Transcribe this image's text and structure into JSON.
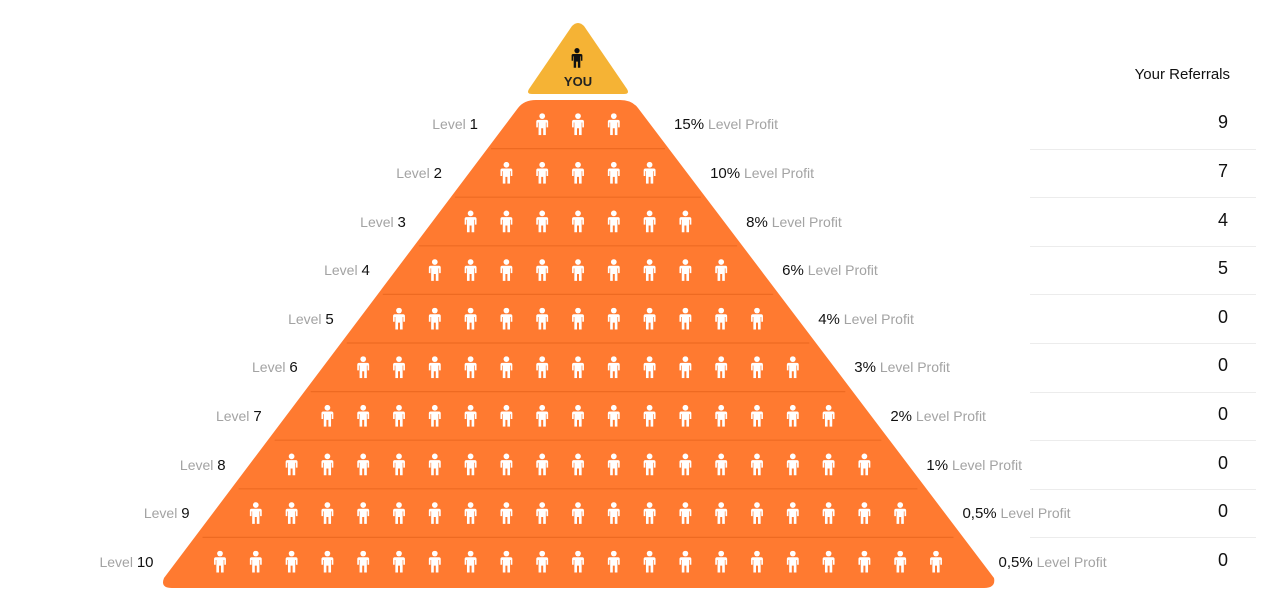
{
  "top": {
    "label": "YOU",
    "color": "#f5b335",
    "icon": "person-icon"
  },
  "pyramid_color": "#ff7a30",
  "level_word": "Level",
  "profit_word": "Level Profit",
  "referrals_header": "Your Referrals",
  "levels": [
    {
      "number": "1",
      "profit": "15%",
      "referrals": "9",
      "people": 3
    },
    {
      "number": "2",
      "profit": "10%",
      "referrals": "7",
      "people": 5
    },
    {
      "number": "3",
      "profit": "8%",
      "referrals": "4",
      "people": 7
    },
    {
      "number": "4",
      "profit": "6%",
      "referrals": "5",
      "people": 9
    },
    {
      "number": "5",
      "profit": "4%",
      "referrals": "0",
      "people": 11
    },
    {
      "number": "6",
      "profit": "3%",
      "referrals": "0",
      "people": 13
    },
    {
      "number": "7",
      "profit": "2%",
      "referrals": "0",
      "people": 15
    },
    {
      "number": "8",
      "profit": "1%",
      "referrals": "0",
      "people": 17
    },
    {
      "number": "9",
      "profit": "0,5%",
      "referrals": "0",
      "people": 19
    },
    {
      "number": "10",
      "profit": "0,5%",
      "referrals": "0",
      "people": 21
    }
  ]
}
